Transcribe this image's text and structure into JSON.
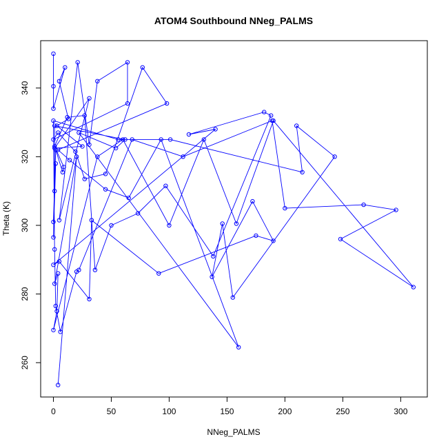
{
  "chart_data": {
    "type": "line",
    "title": "ATOM4 Southbound NNeg_PALMS",
    "xlabel": "NNeg_PALMS",
    "ylabel": "Theta (K)",
    "xlim": [
      -11,
      323
    ],
    "ylim": [
      250,
      353.8
    ],
    "xticks": [
      0,
      50,
      100,
      150,
      200,
      250,
      300
    ],
    "yticks": [
      260,
      280,
      300,
      320,
      340
    ],
    "grid": false,
    "legend": "none",
    "series": [
      {
        "color": "#0000ff",
        "marker": "open-circle",
        "x": [
          0,
          0,
          0,
          10,
          5,
          13,
          3,
          25,
          1,
          31,
          5,
          21,
          31,
          38,
          64,
          64,
          0,
          4,
          19,
          27,
          45,
          77,
          98,
          4,
          14,
          45,
          65,
          93,
          160,
          22,
          54,
          62,
          1,
          1,
          0,
          2,
          0,
          2,
          8,
          9,
          1,
          12,
          27,
          36,
          50,
          73,
          97,
          138,
          188,
          182,
          117,
          140,
          0,
          5,
          31,
          33,
          91,
          175,
          190,
          172,
          137,
          146,
          155,
          243,
          210,
          215,
          101,
          56,
          0,
          1,
          2,
          6,
          20,
          22,
          68,
          112,
          189,
          200,
          268,
          296,
          248,
          311,
          190,
          158,
          130,
          100,
          60,
          38,
          0,
          3,
          4,
          1,
          20,
          4
        ],
        "y": [
          350,
          340.5,
          334,
          346,
          342,
          331,
          329,
          323,
          322.5,
          337,
          301.5,
          347.5,
          323.5,
          342,
          347.5,
          335.5,
          325,
          327,
          321.5,
          313.5,
          315,
          346,
          335.5,
          322,
          319,
          310.5,
          308,
          325,
          264.5,
          327,
          322.5,
          325,
          329,
          310,
          296.5,
          318,
          301,
          322,
          315.5,
          317,
          323,
          331.5,
          332,
          287,
          300,
          303.5,
          311.5,
          291,
          332,
          333,
          326.5,
          328,
          288.5,
          289.5,
          278.5,
          301.5,
          286,
          297,
          295.5,
          307,
          285,
          300.5,
          279,
          320,
          329,
          315.5,
          325,
          325,
          330.5,
          293,
          276.5,
          269,
          286.5,
          287,
          325,
          320,
          330.5,
          305,
          306,
          304.5,
          296,
          282,
          330.5,
          300.5,
          325,
          300,
          325,
          320,
          269.5,
          275,
          286,
          283,
          320,
          253.5
        ]
      }
    ]
  }
}
